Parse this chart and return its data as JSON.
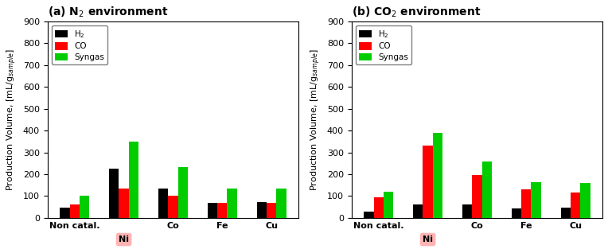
{
  "panels": [
    {
      "title": "(a) N$_2$ environment",
      "categories": [
        "Non catal.",
        "Ni",
        "Co",
        "Fe",
        "Cu"
      ],
      "H2": [
        45,
        225,
        135,
        70,
        72
      ],
      "CO": [
        60,
        135,
        102,
        70,
        70
      ],
      "Syngas": [
        102,
        350,
        232,
        135,
        135
      ],
      "ylim": [
        0,
        900
      ],
      "yticks": [
        0,
        100,
        200,
        300,
        400,
        500,
        600,
        700,
        800,
        900
      ]
    },
    {
      "title": "(b) CO$_2$ environment",
      "categories": [
        "Non catal.",
        "Ni",
        "Co",
        "Fe",
        "Cu"
      ],
      "H2": [
        28,
        62,
        62,
        43,
        47
      ],
      "CO": [
        95,
        332,
        195,
        130,
        115
      ],
      "Syngas": [
        120,
        390,
        257,
        165,
        160
      ],
      "ylim": [
        0,
        900
      ],
      "yticks": [
        0,
        100,
        200,
        300,
        400,
        500,
        600,
        700,
        800,
        900
      ]
    }
  ],
  "bar_colors": [
    "#000000",
    "#ff0000",
    "#00cc00"
  ],
  "bar_labels": [
    "H$_2$",
    "CO",
    "Syngas"
  ],
  "ylabel": "Production Volume, [mL/g$_{sample}$]",
  "legend_fontsize": 7.5,
  "tick_fontsize": 8,
  "label_fontsize": 8,
  "title_fontsize": 10,
  "ni_bg_color": "#ffb3b3",
  "bar_width": 0.2
}
